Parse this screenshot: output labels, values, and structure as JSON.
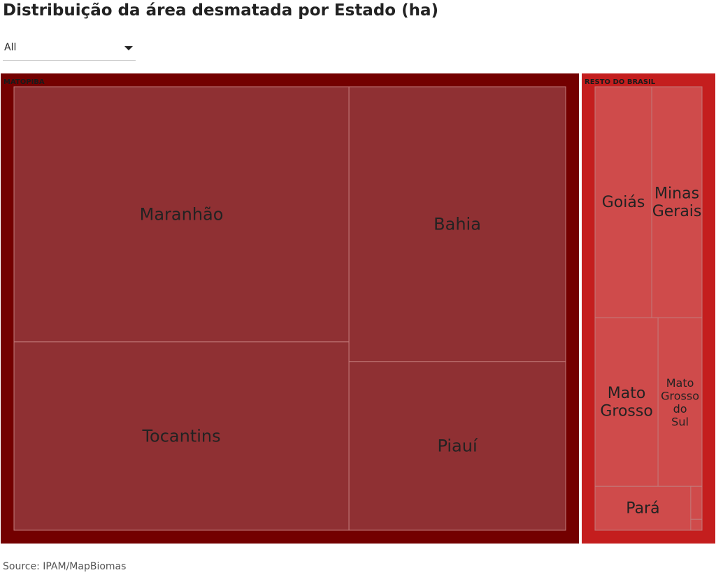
{
  "title": "Distribuição da área desmatada por Estado (ha)",
  "filter": {
    "selected": "All"
  },
  "source": "Source: IPAM/MapBiomas",
  "colors": {
    "group_matopiba": "#730000",
    "group_resto": "#c41e1e",
    "leaf_matopiba": "#8f3033",
    "leaf_resto": "#cf4b4b",
    "leaf_line": "#c27a7a",
    "label": "#222222",
    "background": "#ffffff"
  },
  "chart_data": {
    "type": "treemap",
    "groups": [
      {
        "name": "MATOPIBA",
        "children": [
          {
            "name": "Maranhão",
            "value": 29
          },
          {
            "name": "Tocantins",
            "value": 21.4
          },
          {
            "name": "Bahia",
            "value": 20.2
          },
          {
            "name": "Piauí",
            "value": 12.4
          }
        ]
      },
      {
        "name": "RESTO DO BRASIL",
        "children": [
          {
            "name": "Goiás",
            "value": 5.3
          },
          {
            "name": "Minas Gerais",
            "value": 4.7
          },
          {
            "name": "Mato Grosso",
            "value": 4.3
          },
          {
            "name": "Mato Grosso do Sul",
            "value": 3.0
          },
          {
            "name": "Pará",
            "value": 1.7
          },
          {
            "name": "",
            "value": 0.15
          },
          {
            "name": "",
            "value": 0.05
          }
        ]
      }
    ]
  }
}
